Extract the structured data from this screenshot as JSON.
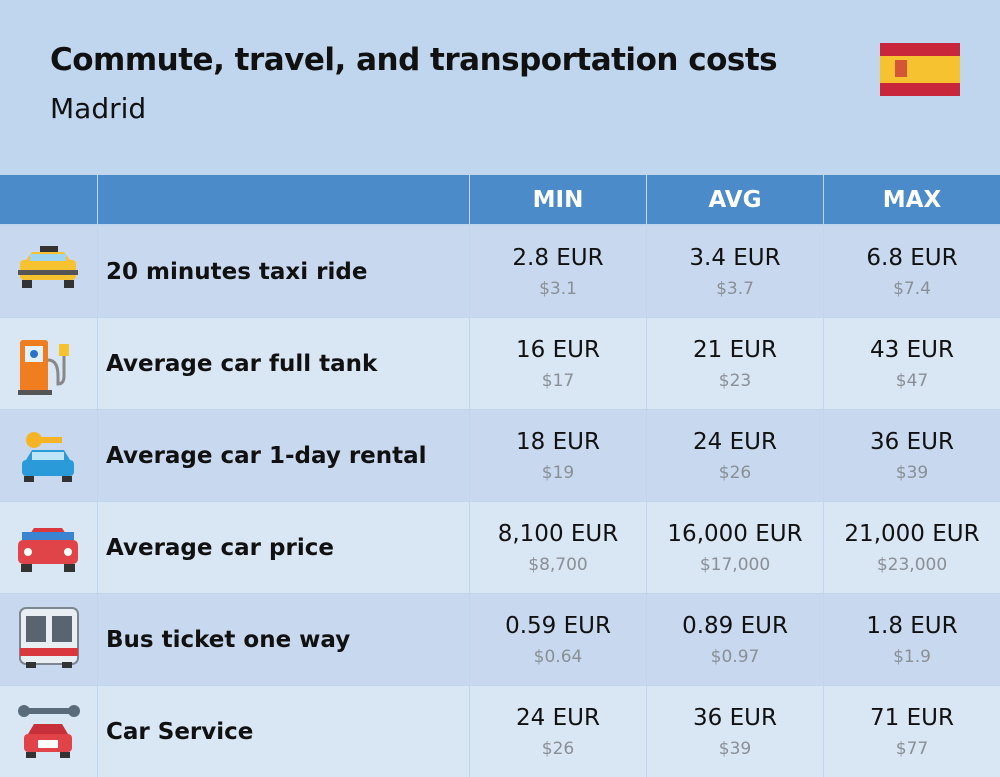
{
  "header": {
    "title": "Commute, travel, and transportation costs",
    "subtitle": "Madrid"
  },
  "table": {
    "columns": [
      "MIN",
      "AVG",
      "MAX"
    ],
    "rows": [
      {
        "label": "20 minutes taxi ride",
        "cells": [
          [
            "2.8 EUR",
            "$3.1"
          ],
          [
            "3.4 EUR",
            "$3.7"
          ],
          [
            "6.8 EUR",
            "$7.4"
          ]
        ]
      },
      {
        "label": "Average car full tank",
        "cells": [
          [
            "16 EUR",
            "$17"
          ],
          [
            "21 EUR",
            "$23"
          ],
          [
            "43 EUR",
            "$47"
          ]
        ]
      },
      {
        "label": "Average car 1-day rental",
        "cells": [
          [
            "18 EUR",
            "$19"
          ],
          [
            "24 EUR",
            "$26"
          ],
          [
            "36 EUR",
            "$39"
          ]
        ]
      },
      {
        "label": "Average car price",
        "cells": [
          [
            "8,100 EUR",
            "$8,700"
          ],
          [
            "16,000 EUR",
            "$17,000"
          ],
          [
            "21,000 EUR",
            "$23,000"
          ]
        ]
      },
      {
        "label": "Bus ticket one way",
        "cells": [
          [
            "0.59 EUR",
            "$0.64"
          ],
          [
            "0.89 EUR",
            "$0.97"
          ],
          [
            "1.8 EUR",
            "$1.9"
          ]
        ]
      },
      {
        "label": "Car Service",
        "cells": [
          [
            "24 EUR",
            "$26"
          ],
          [
            "36 EUR",
            "$39"
          ],
          [
            "71 EUR",
            "$77"
          ]
        ]
      }
    ]
  }
}
